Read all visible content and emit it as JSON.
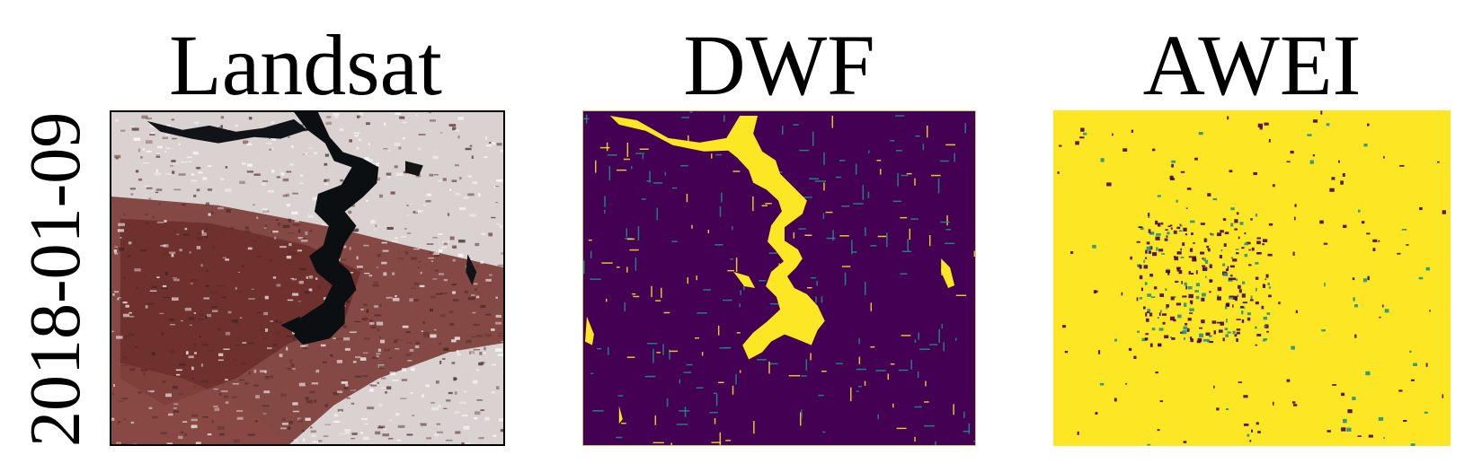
{
  "figure": {
    "row_label": "2018-01-09",
    "columns": [
      {
        "title": "Landsat"
      },
      {
        "title": "DWF"
      },
      {
        "title": "AWEI"
      }
    ]
  },
  "colors": {
    "viridis_dark": "#440154",
    "viridis_yellow": "#fde725",
    "viridis_teal": "#21918c",
    "landsat_dark_water": "#0b0f12",
    "landsat_snow": "#e6e1e0",
    "landsat_red_terrain": "#7a3a34"
  }
}
